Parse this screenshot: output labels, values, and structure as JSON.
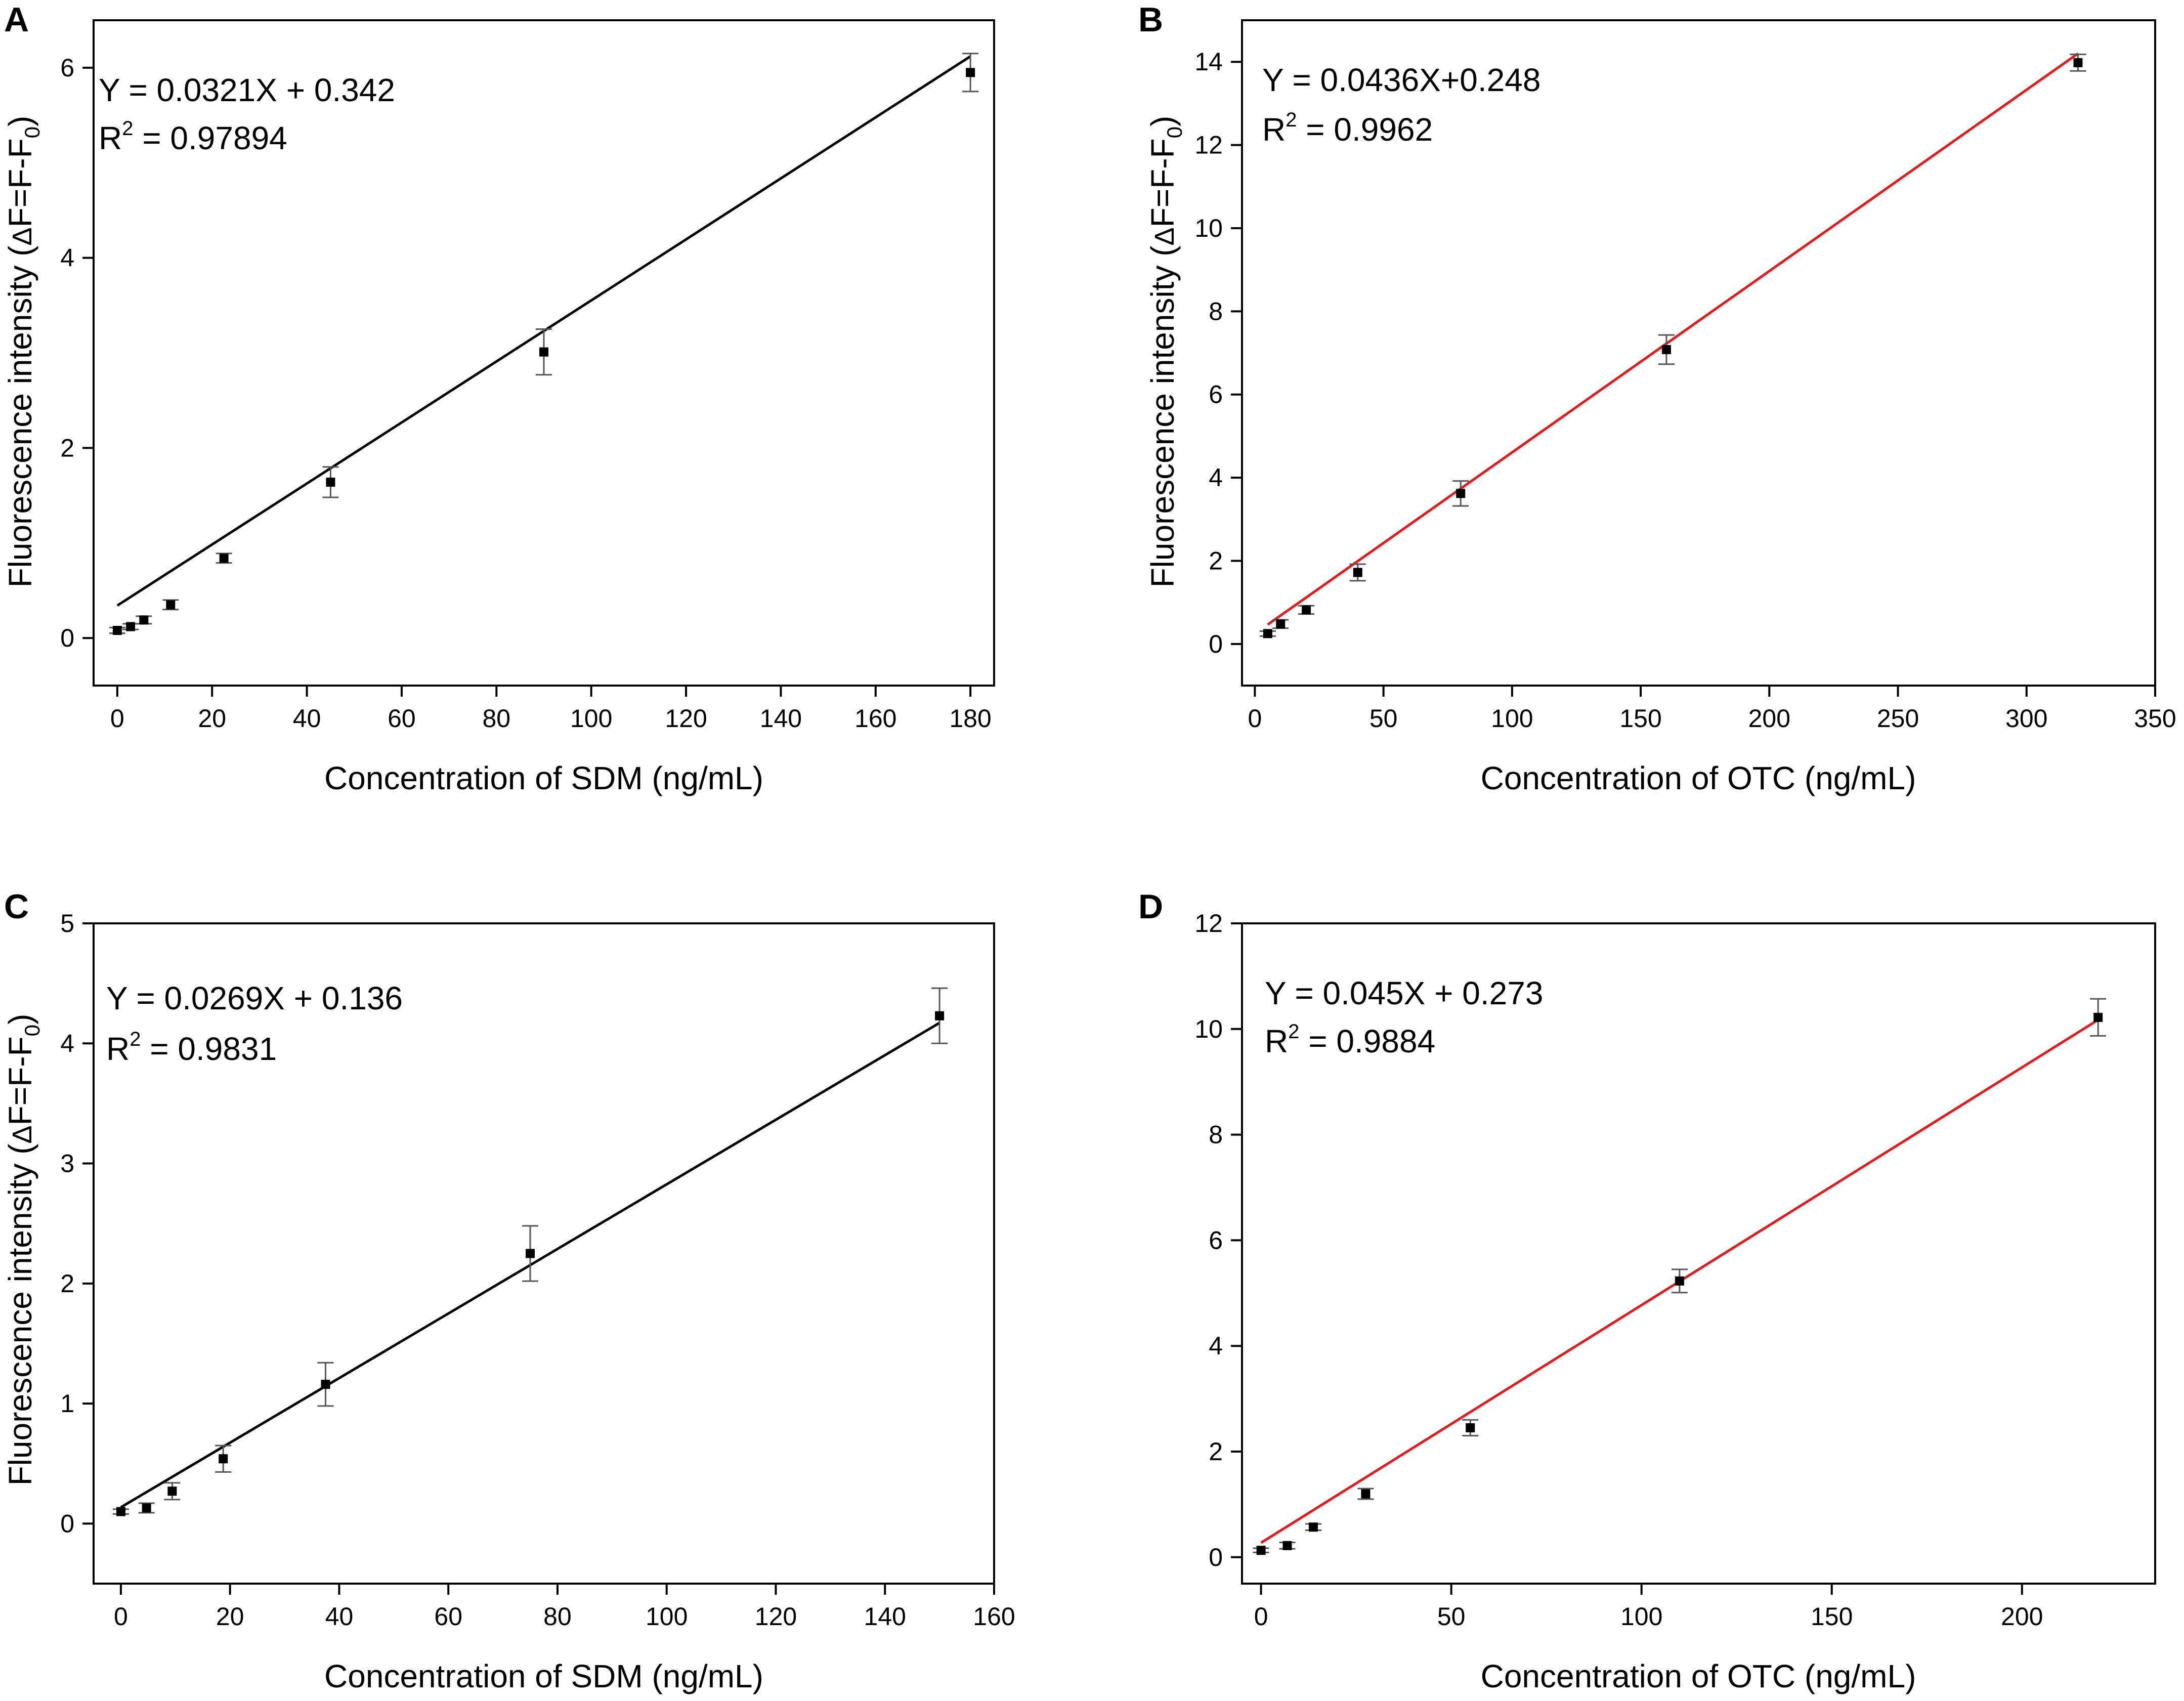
{
  "figure": {
    "colors": {
      "axis": "#000000",
      "fit_black": "#000000",
      "fit_red": "#e41a1c",
      "marker": "#000000",
      "errorbar": "#555555"
    },
    "ylabel_parts": {
      "prefix": "Fluorescence intensity (",
      "delta": "Δ",
      "mid": "F=F-F",
      "sub": "0",
      "suffix": ")"
    }
  },
  "chart_data": [
    {
      "id": "A",
      "type": "scatter",
      "panel_label": "A",
      "xlabel": "Concentration of SDM (ng/mL)",
      "ylabel": "Fluorescence intensity (ΔF=F-F0)",
      "show_ylabel": true,
      "xlim": [
        -5,
        185
      ],
      "ylim": [
        -0.5,
        6.5
      ],
      "xticks": [
        0,
        20,
        40,
        60,
        80,
        100,
        120,
        140,
        160,
        180
      ],
      "yticks": [
        0,
        2,
        4,
        6
      ],
      "x": [
        0,
        2.8,
        5.6,
        11.25,
        22.5,
        45,
        90,
        180
      ],
      "y": [
        0.08,
        0.12,
        0.19,
        0.35,
        0.84,
        1.64,
        3.01,
        5.95
      ],
      "err": [
        0.03,
        0.03,
        0.04,
        0.05,
        0.05,
        0.16,
        0.24,
        0.2
      ],
      "fit": {
        "slope": 0.0321,
        "intercept": 0.342,
        "x_range": [
          0,
          180
        ],
        "color": "#000000"
      },
      "equation": "Y = 0.0321X + 0.342",
      "r2_label": "R",
      "r2_exp": "2",
      "r2_value": " = 0.97894"
    },
    {
      "id": "B",
      "type": "scatter",
      "panel_label": "B",
      "xlabel": "Concentration of OTC (ng/mL)",
      "ylabel": "Fluorescence intensity (ΔF=F-F0)",
      "show_ylabel": true,
      "xlim": [
        -5,
        350
      ],
      "ylim": [
        -1,
        15
      ],
      "xticks": [
        0,
        50,
        100,
        150,
        200,
        250,
        300,
        350
      ],
      "yticks": [
        0,
        2,
        4,
        6,
        8,
        10,
        12,
        14
      ],
      "x": [
        5,
        10,
        20,
        40,
        80,
        160,
        320
      ],
      "y": [
        0.25,
        0.48,
        0.82,
        1.72,
        3.62,
        7.08,
        13.98
      ],
      "err": [
        0.06,
        0.1,
        0.1,
        0.2,
        0.3,
        0.35,
        0.2
      ],
      "fit": {
        "slope": 0.0436,
        "intercept": 0.248,
        "x_range": [
          5,
          320
        ],
        "color": "#e41a1c"
      },
      "equation": "Y = 0.0436X+0.248",
      "r2_label": "R",
      "r2_exp": "2",
      "r2_value": " = 0.9962"
    },
    {
      "id": "C",
      "type": "scatter",
      "panel_label": "C",
      "xlabel": "Concentration of SDM (ng/mL)",
      "ylabel": "Fluorescence intensity (ΔF=F-F0)",
      "show_ylabel": true,
      "xlim": [
        -5,
        160
      ],
      "ylim": [
        -0.5,
        5
      ],
      "xticks": [
        0,
        20,
        40,
        60,
        80,
        100,
        120,
        140,
        160
      ],
      "yticks": [
        0,
        1,
        2,
        3,
        4,
        5
      ],
      "x": [
        0,
        4.7,
        9.4,
        18.75,
        37.5,
        75,
        150
      ],
      "y": [
        0.1,
        0.13,
        0.27,
        0.54,
        1.16,
        2.25,
        4.23
      ],
      "err": [
        0.02,
        0.04,
        0.07,
        0.11,
        0.18,
        0.23,
        0.23
      ],
      "fit": {
        "slope": 0.0269,
        "intercept": 0.136,
        "x_range": [
          0,
          150
        ],
        "color": "#000000"
      },
      "equation": "Y = 0.0269X + 0.136",
      "r2_label": "R",
      "r2_exp": "2",
      "r2_value": " = 0.9831"
    },
    {
      "id": "D",
      "type": "scatter",
      "panel_label": "D",
      "xlabel": "Concentration of OTC (ng/mL)",
      "ylabel": "",
      "show_ylabel": false,
      "xlim": [
        -5,
        235
      ],
      "ylim": [
        -0.5,
        12
      ],
      "xticks": [
        0,
        50,
        100,
        150,
        200
      ],
      "yticks": [
        0,
        2,
        4,
        6,
        8,
        10,
        12
      ],
      "x": [
        0,
        6.9,
        13.75,
        27.5,
        55,
        110,
        220
      ],
      "y": [
        0.13,
        0.22,
        0.57,
        1.2,
        2.45,
        5.23,
        10.22
      ],
      "err": [
        0.04,
        0.06,
        0.06,
        0.1,
        0.15,
        0.22,
        0.35
      ],
      "fit": {
        "slope": 0.045,
        "intercept": 0.273,
        "x_range": [
          0,
          220
        ],
        "color": "#e41a1c"
      },
      "equation": "Y = 0.045X + 0.273",
      "r2_label": "R",
      "r2_exp": "2",
      "r2_value": " = 0.9884"
    }
  ]
}
